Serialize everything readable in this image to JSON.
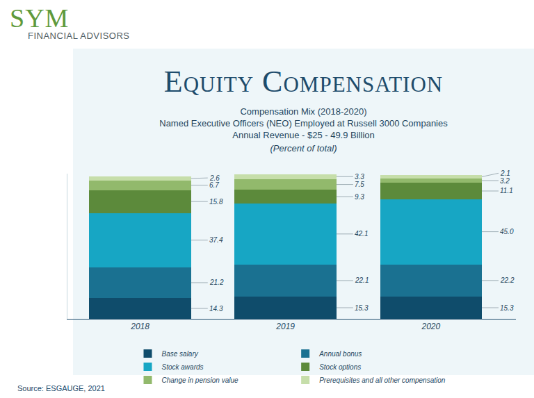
{
  "logo": {
    "name": "SYM",
    "tagline": "FINANCIAL ADVISORS"
  },
  "source": "Source: ESGAUGE, 2021",
  "chart_data": {
    "type": "bar",
    "title": "Equity Compensation",
    "subtitle": [
      "Compensation Mix (2018-2020)",
      "Named Executive Officers (NEO) Employed at Russell 3000 Companies",
      "Annual Revenue - $25 - 49.9 Billion"
    ],
    "note": "(Percent of total)",
    "categories": [
      "2018",
      "2019",
      "2020"
    ],
    "stacked": true,
    "data_labels": true,
    "tick_labels": "x",
    "grid": false,
    "legend": "bottom",
    "ylim": [
      0,
      100
    ],
    "series": [
      {
        "name": "Base salary",
        "color": "#0f4c6b",
        "values": [
          14.3,
          15.3,
          15.3
        ]
      },
      {
        "name": "Annual bonus",
        "color": "#1a7191",
        "values": [
          21.2,
          22.1,
          22.2
        ]
      },
      {
        "name": "Stock awards",
        "color": "#17a6c4",
        "values": [
          37.4,
          42.1,
          45.0
        ],
        "value_labels": [
          "37.4",
          "42.1",
          "45.0"
        ]
      },
      {
        "name": "Stock options",
        "color": "#5c8a3b",
        "values": [
          15.8,
          9.3,
          11.1
        ]
      },
      {
        "name": "Change in pension value",
        "color": "#92b96c",
        "values": [
          6.7,
          7.5,
          3.2
        ]
      },
      {
        "name": "Prerequisites and all other compensation",
        "color": "#c6deaa",
        "values": [
          2.6,
          3.3,
          2.1
        ]
      }
    ]
  }
}
